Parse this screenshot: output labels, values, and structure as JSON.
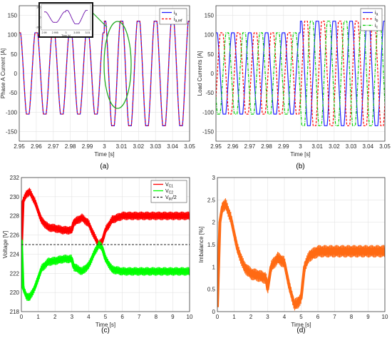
{
  "chart_data": [
    {
      "type": "line",
      "caption": "(a)",
      "xlabel": "Time [s]",
      "ylabel": "Phase A Current [A]",
      "xlim": [
        2.95,
        3.05
      ],
      "ylim": [
        -175,
        175
      ],
      "xticks": [
        "2.95",
        "2.96",
        "2.97",
        "2.98",
        "2.99",
        "3",
        "3.01",
        "3.02",
        "3.03",
        "3.04",
        "3.05"
      ],
      "yticks": [
        "-150",
        "-100",
        "-50",
        "0",
        "50",
        "100",
        "150"
      ],
      "grid": true,
      "legend_position": "top-right",
      "series": [
        {
          "name": "ia",
          "label_main": "i",
          "label_sub": "a",
          "color": "#1f1fff",
          "style": "solid",
          "description_values": {
            "amplitude_before_3s": 105,
            "amplitude_after_3s": 135,
            "frequency_hz": 100
          }
        },
        {
          "name": "ia,ref",
          "label_main": "i",
          "label_sub": "a,ref",
          "color": "#ff0000",
          "style": "dashed",
          "description_values": {
            "amplitude_before_3s": 105,
            "amplitude_after_3s": 135,
            "frequency_hz": 100
          }
        }
      ],
      "inset": {
        "xlabel": "Time [s]",
        "xticks": [
          "2.99",
          "2.995",
          "3",
          "3.005",
          "3.01"
        ],
        "yticks": [
          "200",
          "0",
          "-200"
        ]
      }
    },
    {
      "type": "line",
      "caption": "(b)",
      "xlabel": "Time [s]",
      "ylabel": "Load Currents [A]",
      "xlim": [
        2.95,
        3.05
      ],
      "ylim": [
        -175,
        175
      ],
      "xticks": [
        "2.95",
        "2.96",
        "2.97",
        "2.98",
        "2.99",
        "3",
        "3.01",
        "3.02",
        "3.03",
        "3.04",
        "3.05"
      ],
      "yticks": [
        "-150",
        "-100",
        "-50",
        "0",
        "50",
        "100",
        "150"
      ],
      "grid": true,
      "legend_position": "top-right",
      "series": [
        {
          "name": "ia",
          "label_main": "i",
          "label_sub": "a",
          "color": "#1f1fff",
          "style": "solid",
          "phase_deg": 0
        },
        {
          "name": "ib",
          "label_main": "i",
          "label_sub": "b",
          "color": "#ff0000",
          "style": "dashed",
          "phase_deg": -120
        },
        {
          "name": "ic",
          "label_main": "i",
          "label_sub": "c",
          "color": "#00cc00",
          "style": "dashdot",
          "phase_deg": 120
        }
      ]
    },
    {
      "type": "line",
      "caption": "(c)",
      "xlabel": "Time [s]",
      "ylabel": "Voltage [V]",
      "xlim": [
        0,
        10
      ],
      "ylim": [
        218,
        232
      ],
      "xticks": [
        "0",
        "1",
        "2",
        "3",
        "4",
        "5",
        "6",
        "7",
        "8",
        "9",
        "10"
      ],
      "yticks": [
        "218",
        "220",
        "222",
        "224",
        "226",
        "228",
        "230",
        "232"
      ],
      "grid": true,
      "legend_position": "top-right",
      "series": [
        {
          "name": "VC1",
          "label_main": "V",
          "label_sub": "C1",
          "color": "#ff0000",
          "style": "solid",
          "x": [
            0,
            0.1,
            0.3,
            0.5,
            0.8,
            1.2,
            1.6,
            2.0,
            2.5,
            3.0,
            3.1,
            3.3,
            3.6,
            4.0,
            4.3,
            4.6,
            4.8,
            5.0,
            5.4,
            6.0,
            7.0,
            8.0,
            9.0,
            10.0
          ],
          "y": [
            224.5,
            229.5,
            230.3,
            230.5,
            229.5,
            227.5,
            226.8,
            226.7,
            226.5,
            226.5,
            227.3,
            227.5,
            227.8,
            227.2,
            226.0,
            225.0,
            225.3,
            226.5,
            227.6,
            228.0,
            228.0,
            228.0,
            228.0,
            228.0
          ],
          "ripple": 0.45
        },
        {
          "name": "VC2",
          "label_main": "V",
          "label_sub": "C2",
          "color": "#00ff00",
          "style": "solid",
          "x": [
            0,
            0.1,
            0.3,
            0.5,
            0.8,
            1.2,
            1.6,
            2.0,
            2.5,
            3.0,
            3.1,
            3.3,
            3.6,
            4.0,
            4.3,
            4.6,
            4.8,
            5.0,
            5.4,
            6.0,
            7.0,
            8.0,
            9.0,
            10.0
          ],
          "y": [
            225.5,
            220.5,
            219.6,
            219.5,
            220.5,
            222.5,
            223.2,
            223.3,
            223.5,
            223.5,
            222.7,
            222.5,
            222.2,
            222.8,
            224.0,
            225.0,
            224.7,
            223.5,
            222.4,
            222.2,
            222.2,
            222.2,
            222.2,
            222.2
          ],
          "ripple": 0.45
        },
        {
          "name": "Vdc/2",
          "label_main": "V",
          "label_sub": "dc",
          "label_suffix": "/2",
          "color": "#262626",
          "style": "dashed",
          "x": [
            0,
            10
          ],
          "y": [
            225,
            225
          ]
        }
      ]
    },
    {
      "type": "line",
      "caption": "(d)",
      "xlabel": "Time [s]",
      "ylabel": "Imbalance [%]",
      "xlim": [
        0,
        10
      ],
      "ylim": [
        0,
        3
      ],
      "xticks": [
        "0",
        "1",
        "2",
        "3",
        "4",
        "5",
        "6",
        "7",
        "8",
        "9",
        "10"
      ],
      "yticks": [
        "0",
        "0.5",
        "1",
        "1.5",
        "2",
        "2.5",
        "3"
      ],
      "grid": true,
      "series": [
        {
          "name": "imbalance",
          "color": "#ff6a13",
          "style": "solid",
          "x": [
            0,
            0.15,
            0.3,
            0.5,
            0.8,
            1.2,
            1.6,
            2.0,
            2.5,
            2.9,
            3.0,
            3.2,
            3.6,
            4.0,
            4.3,
            4.6,
            4.8,
            5.0,
            5.2,
            5.5,
            6.0,
            7.0,
            8.0,
            9.0,
            10.0
          ],
          "y": [
            0.1,
            2.0,
            2.35,
            2.4,
            2.1,
            1.4,
            1.0,
            0.85,
            0.8,
            0.75,
            0.5,
            1.0,
            1.2,
            1.1,
            0.55,
            0.15,
            0.2,
            0.3,
            1.0,
            1.25,
            1.35,
            1.35,
            1.35,
            1.35,
            1.35
          ],
          "ripple": 0.14
        }
      ]
    }
  ]
}
